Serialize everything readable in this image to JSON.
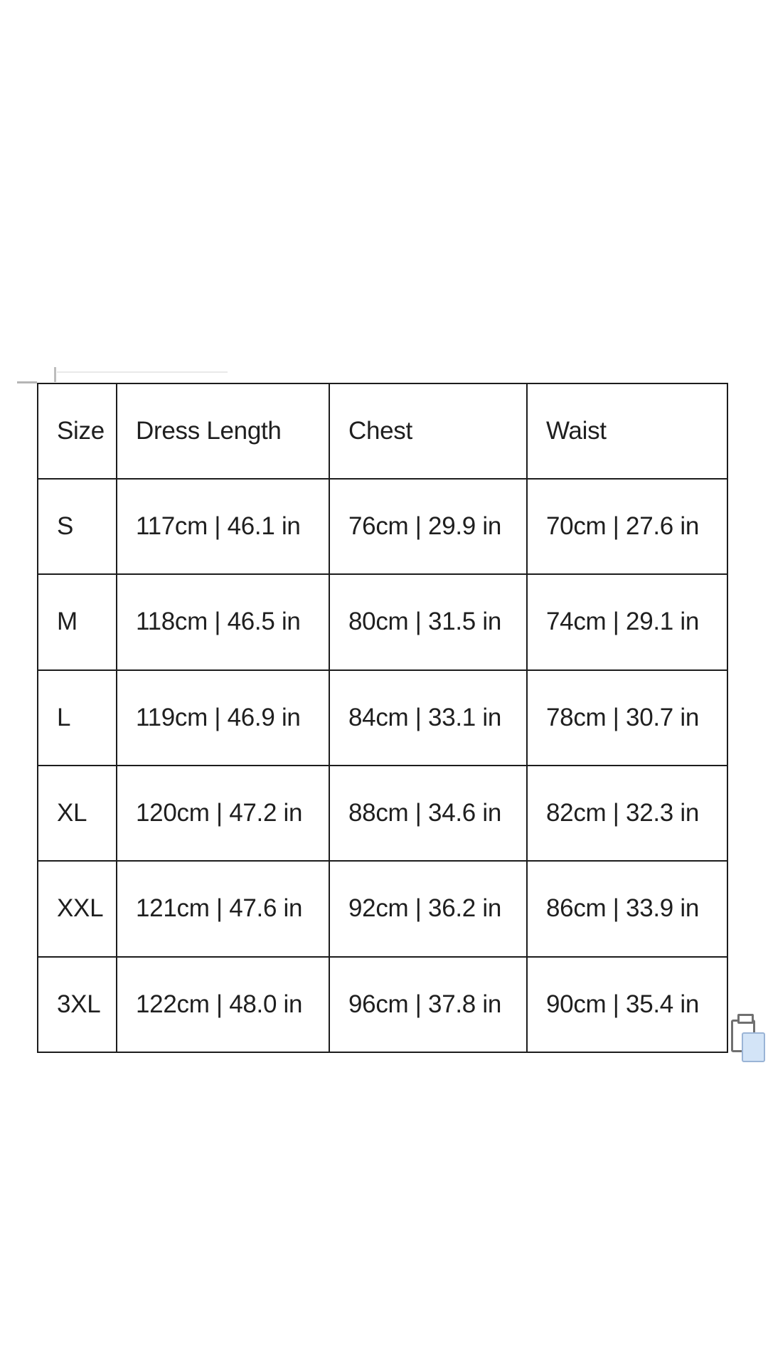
{
  "page": {
    "background_color": "#ffffff"
  },
  "size_chart": {
    "columns": [
      "Size",
      "Dress Length",
      "Chest",
      "Waist"
    ],
    "rows": [
      {
        "size": "S",
        "dress_length": "117cm | 46.1 in",
        "chest": "76cm | 29.9 in",
        "waist": "70cm | 27.6 in"
      },
      {
        "size": "M",
        "dress_length": "118cm | 46.5 in",
        "chest": "80cm | 31.5 in",
        "waist": "74cm | 29.1 in"
      },
      {
        "size": "L",
        "dress_length": "119cm | 46.9 in",
        "chest": "84cm | 33.1 in",
        "waist": "78cm | 30.7 in"
      },
      {
        "size": "XL",
        "dress_length": "120cm | 47.2 in",
        "chest": "88cm | 34.6 in",
        "waist": "82cm | 32.3 in"
      },
      {
        "size": "XXL",
        "dress_length": "121cm | 47.6 in",
        "chest": "92cm | 36.2 in",
        "waist": "86cm | 33.9 in"
      },
      {
        "size": "3XL",
        "dress_length": "122cm | 48.0 in",
        "chest": "96cm | 37.8 in",
        "waist": "90cm | 35.4 in"
      }
    ],
    "border_color": "#1c1c1c",
    "text_color": "#1f1f1f"
  },
  "icons": {
    "paste_options": {
      "name": "paste-options-icon",
      "page_fill": "#d3e4f7",
      "page_stroke": "#9ab4d6",
      "board_stroke": "#707070"
    },
    "crop_mark_color": "#b5b5b5"
  }
}
